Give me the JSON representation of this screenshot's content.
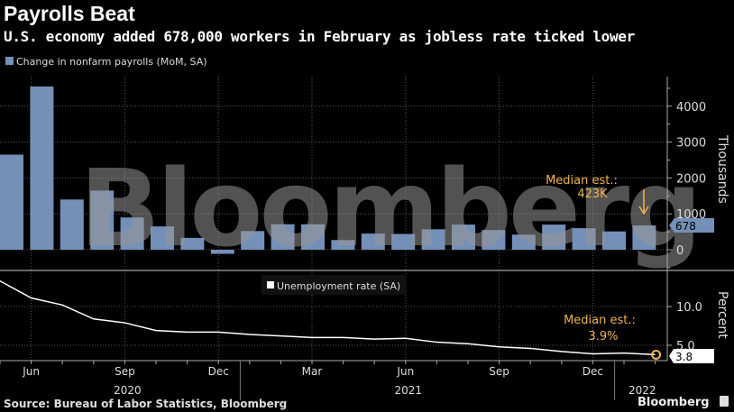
{
  "title": "Payrolls Beat",
  "subtitle": "U.S. economy added 678,000 workers in February as jobless rate ticked lower",
  "source": "Source: Bureau of Labor Statistics, Bloomberg",
  "brand": "Bloomberg",
  "watermark": "Bloomberg",
  "colors": {
    "bars": "#7590b8",
    "line": "#ffffff",
    "annotation": "#f0b44c",
    "background": "#000000"
  },
  "chart_data": [
    {
      "type": "bar",
      "legend": "Change in nonfarm payrolls (MoM, SA)",
      "ylabel": "Thousands",
      "ylim": [
        -500,
        5000
      ],
      "yticks": [
        "0",
        "1000",
        "2000",
        "3000",
        "4000"
      ],
      "grid": true,
      "categories": [
        "2020-05",
        "2020-06",
        "2020-07",
        "2020-08",
        "2020-09",
        "2020-10",
        "2020-11",
        "2020-12",
        "2021-01",
        "2021-02",
        "2021-03",
        "2021-04",
        "2021-05",
        "2021-06",
        "2021-07",
        "2021-08",
        "2021-09",
        "2021-10",
        "2021-11",
        "2021-12",
        "2022-01",
        "2022-02"
      ],
      "values": [
        2650,
        4550,
        1400,
        1650,
        900,
        650,
        330,
        -115,
        520,
        710,
        710,
        270,
        450,
        440,
        570,
        700,
        550,
        420,
        700,
        600,
        510,
        678
      ],
      "last_value_label": "678",
      "annotation": {
        "line1": "Median est.:",
        "line2": "423K",
        "value": 423
      }
    },
    {
      "type": "line",
      "legend": "Unemployment rate (SA)",
      "ylabel": "Percent",
      "ylim": [
        2.0,
        14.5
      ],
      "yticks": [
        "5.0",
        "10.0"
      ],
      "x": [
        "2020-05",
        "2020-06",
        "2020-07",
        "2020-08",
        "2020-09",
        "2020-10",
        "2020-11",
        "2020-12",
        "2021-01",
        "2021-02",
        "2021-03",
        "2021-04",
        "2021-05",
        "2021-06",
        "2021-07",
        "2021-08",
        "2021-09",
        "2021-10",
        "2021-11",
        "2021-12",
        "2022-01",
        "2022-02"
      ],
      "values": [
        13.3,
        11.1,
        10.2,
        8.4,
        7.9,
        6.9,
        6.7,
        6.7,
        6.4,
        6.2,
        6.0,
        6.0,
        5.8,
        5.9,
        5.4,
        5.2,
        4.8,
        4.6,
        4.2,
        3.9,
        4.0,
        3.8
      ],
      "last_value_label": "3.8",
      "annotation": {
        "line1": "Median est.:",
        "line2": "3.9%",
        "value": 3.9
      }
    }
  ],
  "xaxis": {
    "month_ticks": [
      {
        "label": "Jun",
        "index": 1
      },
      {
        "label": "Sep",
        "index": 4
      },
      {
        "label": "Dec",
        "index": 7
      },
      {
        "label": "Mar",
        "index": 10
      },
      {
        "label": "Jun",
        "index": 13
      },
      {
        "label": "Sep",
        "index": 16
      },
      {
        "label": "Dec",
        "index": 19
      }
    ],
    "year_labels": [
      {
        "label": "2020",
        "index": 4
      },
      {
        "label": "2021",
        "index": 13
      },
      {
        "label": "2022",
        "index": 20.5
      }
    ]
  }
}
